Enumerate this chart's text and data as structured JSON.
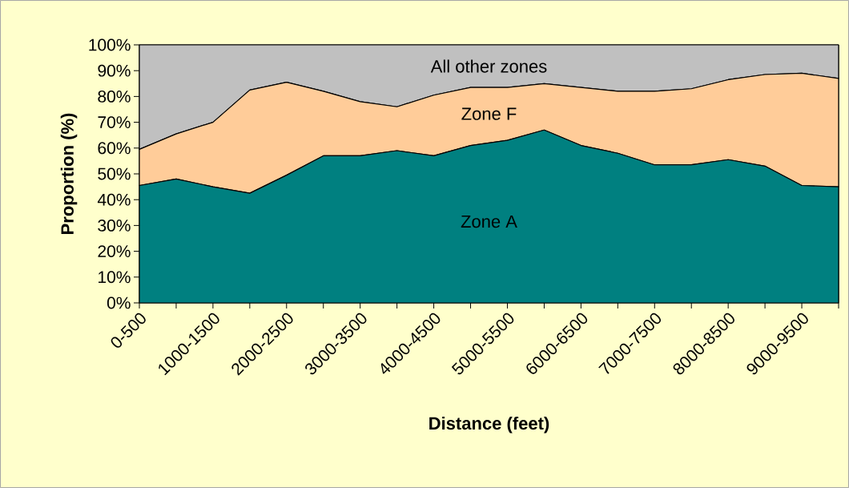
{
  "chart_data": {
    "type": "area",
    "stacked": true,
    "categories": [
      "0-500",
      null,
      "1000-1500",
      null,
      "2000-2500",
      null,
      "3000-3500",
      null,
      "4000-4500",
      null,
      "5000-5500",
      null,
      "6000-6500",
      null,
      "7000-7500",
      null,
      "8000-8500",
      null,
      "9000-9500",
      null
    ],
    "series": [
      {
        "name": "Zone A",
        "color": "#008080",
        "values": [
          45.5,
          48,
          45,
          42.5,
          49.5,
          57,
          57,
          59,
          57,
          61,
          63,
          67,
          61,
          58,
          53.5,
          53.5,
          55.5,
          53,
          45.5,
          45
        ]
      },
      {
        "name": "Zone F",
        "color": "#ffcc99",
        "values": [
          14,
          17.5,
          25,
          40,
          36,
          25,
          21,
          17,
          23.5,
          22.5,
          20.5,
          18,
          22.5,
          24,
          28.5,
          29.5,
          31,
          35.5,
          43.5,
          42
        ]
      },
      {
        "name": "All other zones",
        "color": "#c0c0c0",
        "values": [
          40.5,
          34.5,
          30,
          17.5,
          14.5,
          18,
          22,
          24,
          19.5,
          16.5,
          16.5,
          15,
          16.5,
          18,
          18,
          17,
          13.5,
          11.5,
          11,
          13
        ]
      }
    ],
    "xlabel": "Distance (feet)",
    "ylabel": "Proportion (%)",
    "ylim": [
      0,
      100
    ],
    "yticks": [
      {
        "value": 0,
        "label": "0%"
      },
      {
        "value": 10,
        "label": "10%"
      },
      {
        "value": 20,
        "label": "20%"
      },
      {
        "value": 30,
        "label": "30%"
      },
      {
        "value": 40,
        "label": "40%"
      },
      {
        "value": 50,
        "label": "50%"
      },
      {
        "value": 60,
        "label": "60%"
      },
      {
        "value": 70,
        "label": "70%"
      },
      {
        "value": 80,
        "label": "80%"
      },
      {
        "value": 90,
        "label": "90%"
      },
      {
        "value": 100,
        "label": "100%"
      }
    ]
  }
}
